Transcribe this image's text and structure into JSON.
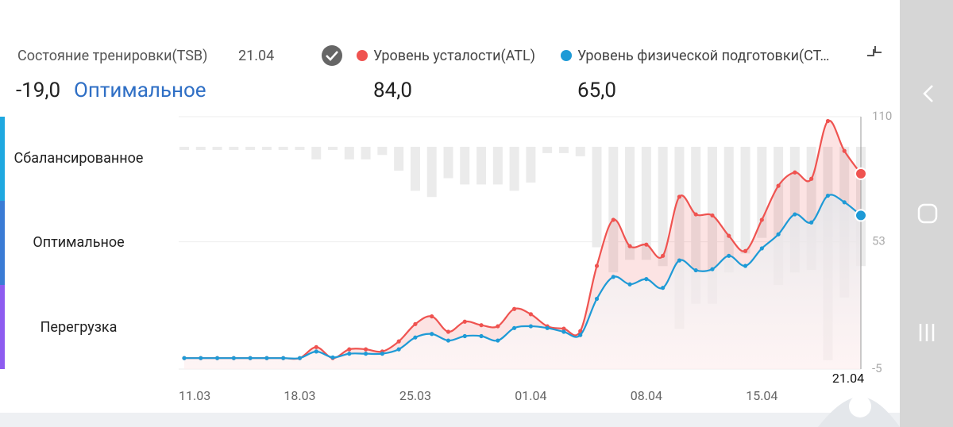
{
  "header": {
    "title": "Состояние тренировки(TSB)",
    "date": "21.04",
    "tsb_value": "-19,0",
    "tsb_status": "Оптимальное",
    "atl_value": "84,0",
    "ctl_value": "65,0"
  },
  "zones": [
    "Сбалансированное",
    "Оптимальное",
    "Перегрузка"
  ],
  "chart_data": {
    "type": "line",
    "categories": [
      "11.03",
      null,
      null,
      null,
      null,
      null,
      null,
      "18.03",
      null,
      null,
      null,
      null,
      null,
      null,
      "25.03",
      null,
      null,
      null,
      null,
      null,
      null,
      "01.04",
      null,
      null,
      null,
      null,
      null,
      null,
      "08.04",
      null,
      null,
      null,
      null,
      null,
      null,
      "15.04",
      null,
      null,
      null,
      null,
      null,
      "21.04"
    ],
    "series": [
      {
        "name": "Уровень усталости(ATL)",
        "color": "#ef5350",
        "values": [
          0,
          0,
          0,
          0,
          0,
          0,
          0,
          0,
          5,
          0,
          4,
          4,
          3,
          7.6,
          15.5,
          19,
          12,
          16.6,
          15,
          14.5,
          22.4,
          20,
          14.5,
          13.4,
          12.3,
          42,
          63,
          51,
          51.7,
          46.6,
          73.5,
          65.5,
          65,
          55.7,
          48.8,
          63,
          78.5,
          84.6,
          81.7,
          108,
          94.4,
          84
        ]
      },
      {
        "name": "Уровень физической подготовки(СТ…",
        "color": "#1e9ad6",
        "values": [
          0,
          0,
          0,
          0,
          0,
          0,
          0,
          0,
          3,
          0.3,
          2,
          2,
          2,
          4,
          9.4,
          11,
          8,
          10,
          10,
          8,
          13.7,
          14.5,
          13.7,
          12,
          10.5,
          27,
          37,
          33.6,
          36,
          32,
          44.5,
          40,
          40.5,
          46.6,
          42,
          50,
          56.4,
          65.5,
          61.8,
          74,
          71,
          65
        ]
      }
    ],
    "tsb": {
      "type": "bar",
      "color": "#ebebeb",
      "axis": "y2",
      "values": [
        -0.5,
        -0.5,
        -0.5,
        -0.5,
        -0.5,
        -0.5,
        -0.5,
        -0.5,
        -2,
        -0.5,
        -2,
        -2,
        -1.3,
        -3.8,
        -7,
        -8,
        -5,
        -6,
        -6,
        -6,
        -7,
        -5.7,
        -1,
        -1,
        -1.5,
        -16,
        -20,
        -18,
        -18,
        -19,
        -29,
        -25,
        -25,
        -20,
        -17,
        -14.5,
        -22,
        -20,
        -19.6,
        -34,
        -24,
        -19
      ]
    },
    "ylim": [
      -5,
      110
    ],
    "yticks": [
      110,
      53,
      -5
    ],
    "y2lim": [
      -35.4,
      4.8
    ],
    "grid": true
  }
}
